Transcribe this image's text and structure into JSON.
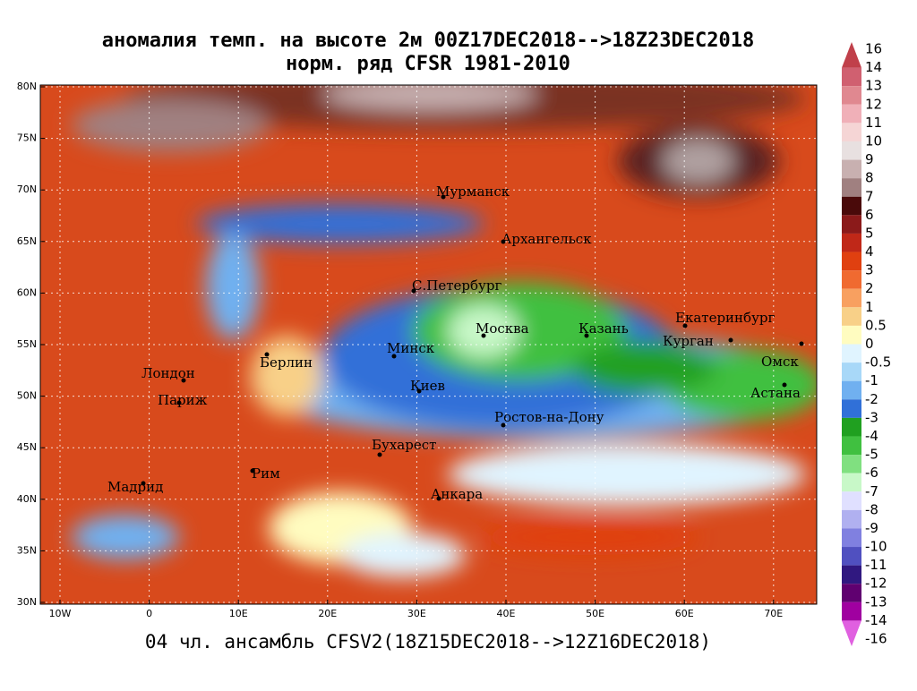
{
  "title": [
    "аномалия темп. на высоте 2м 00Z17DEC2018-->18Z23DEC2018",
    "норм. ряд CFSR 1981-2010"
  ],
  "footer": "04 чл. ансамбль CFSV2(18Z15DEC2018-->12Z16DEC2018)",
  "lat_labels": [
    "80N",
    "75N",
    "70N",
    "65N",
    "60N",
    "55N",
    "50N",
    "45N",
    "40N",
    "35N",
    "30N"
  ],
  "lon_labels": [
    "10W",
    "0",
    "10E",
    "20E",
    "30E",
    "40E",
    "50E",
    "60E",
    "70E"
  ],
  "cities": [
    "Мурманск",
    "Архангельск",
    "С.Петербург",
    "Москва",
    "Казань",
    "Екатеринбург",
    "Курган",
    "Омск",
    "Астана",
    "Минск",
    "Берлин",
    "Лондон",
    "Париж",
    "Киев",
    "Ростов-на-Дону",
    "Бухарест",
    "Рим",
    "Мадрид",
    "Анкара"
  ],
  "colorbar": {
    "labels": [
      "16",
      "14",
      "13",
      "12",
      "11",
      "10",
      "9",
      "8",
      "7",
      "6",
      "5",
      "4",
      "3",
      "2",
      "1",
      "0.5",
      "0",
      "-0.5",
      "-1",
      "-2",
      "-3",
      "-4",
      "-5",
      "-6",
      "-7",
      "-8",
      "-9",
      "-10",
      "-11",
      "-12",
      "-13",
      "-14",
      "-16"
    ],
    "colors": [
      "#c0404a",
      "#d06070",
      "#e08890",
      "#f0b0b8",
      "#f5d5d5",
      "#e8e0e0",
      "#c8b0b0",
      "#a08080",
      "#4a0a0a",
      "#8b1a1a",
      "#c02818",
      "#e04010",
      "#f06a30",
      "#f8a060",
      "#f8d088",
      "#fffcc0",
      "#e0f4ff",
      "#a8d8f8",
      "#70b0f0",
      "#3070d8",
      "#20a020",
      "#40c040",
      "#80e080",
      "#c8f8c8",
      "#e0e0ff",
      "#b0b0f0",
      "#8080e0",
      "#5050c0",
      "#301880",
      "#600070",
      "#a000a0",
      "#e060e0"
    ]
  }
}
